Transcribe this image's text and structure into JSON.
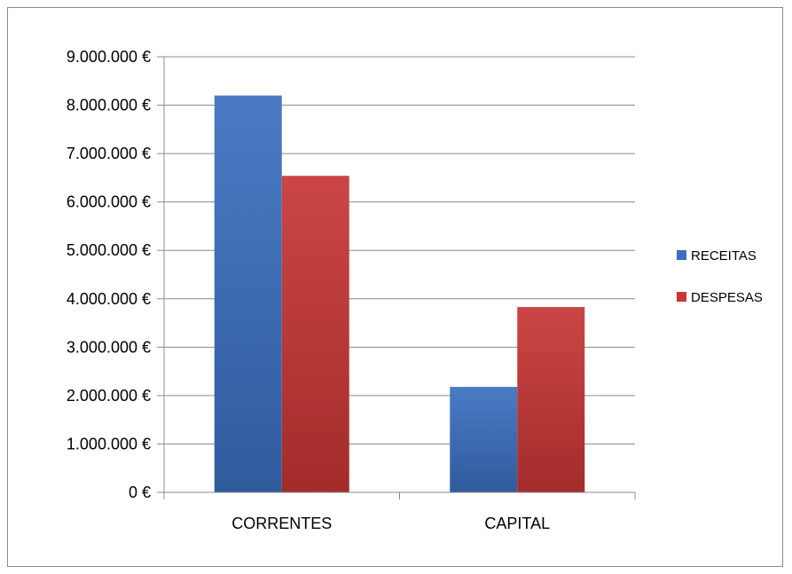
{
  "chart_data": {
    "type": "bar",
    "categories": [
      "CORRENTES",
      "CAPITAL"
    ],
    "series": [
      {
        "name": "RECEITAS",
        "values": [
          8200000,
          2180000
        ],
        "color": "#3a6fbf"
      },
      {
        "name": "DESPESAS",
        "values": [
          6540000,
          3830000
        ],
        "color": "#c73634"
      }
    ],
    "ylim": [
      0,
      9000000
    ],
    "yticks": [
      0,
      1000000,
      2000000,
      3000000,
      4000000,
      5000000,
      6000000,
      7000000,
      8000000,
      9000000
    ],
    "ytick_labels": [
      "0 €",
      "1.000.000 €",
      "2.000.000 €",
      "3.000.000 €",
      "4.000.000 €",
      "5.000.000 €",
      "6.000.000 €",
      "7.000.000 €",
      "8.000.000 €",
      "9.000.000 €"
    ],
    "grid": true,
    "legend_position": "right",
    "title": "",
    "xlabel": "",
    "ylabel": ""
  }
}
